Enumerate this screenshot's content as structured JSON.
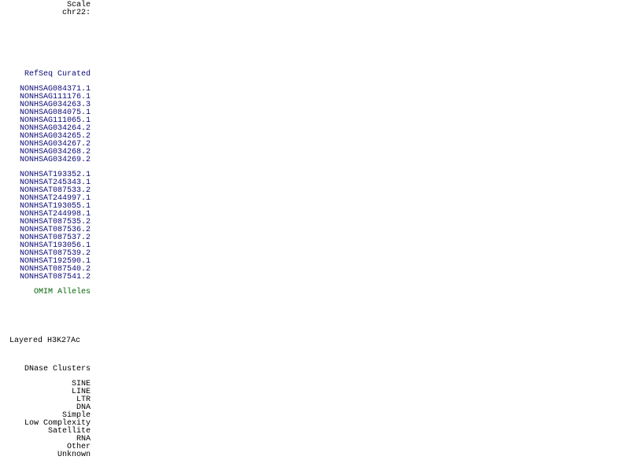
{
  "scale_label": "Scale",
  "chrom_label": "chr22:",
  "refseq": {
    "title": "RefSeq Curated",
    "color": "#0c0c78",
    "group1": [
      "NONHSAG084371.1",
      "NONHSAG111176.1",
      "NONHSAG034263.3",
      "NONHSAG084075.1",
      "NONHSAG111065.1",
      "NONHSAG034264.2",
      "NONHSAG034265.2",
      "NONHSAG034267.2",
      "NONHSAG034268.2",
      "NONHSAG034269.2"
    ],
    "group2": [
      "NONHSAT193352.1",
      "NONHSAT245343.1",
      "NONHSAT087533.2",
      "NONHSAT244997.1",
      "NONHSAT193055.1",
      "NONHSAT244998.1",
      "NONHSAT087535.2",
      "NONHSAT087536.2",
      "NONHSAT087537.2",
      "NONHSAT193056.1",
      "NONHSAT087539.2",
      "NONHSAT192590.1",
      "NONHSAT087540.2",
      "NONHSAT087541.2"
    ]
  },
  "omim": {
    "title": "OMIM Alleles",
    "color": "#006400"
  },
  "layered": {
    "title": "Layered H3K27Ac"
  },
  "dnase": {
    "title": "DNase Clusters"
  },
  "repeats": [
    "SINE",
    "LINE",
    "LTR",
    "DNA",
    "Simple",
    "Low Complexity",
    "Satellite",
    "RNA",
    "Other",
    "Unknown"
  ]
}
